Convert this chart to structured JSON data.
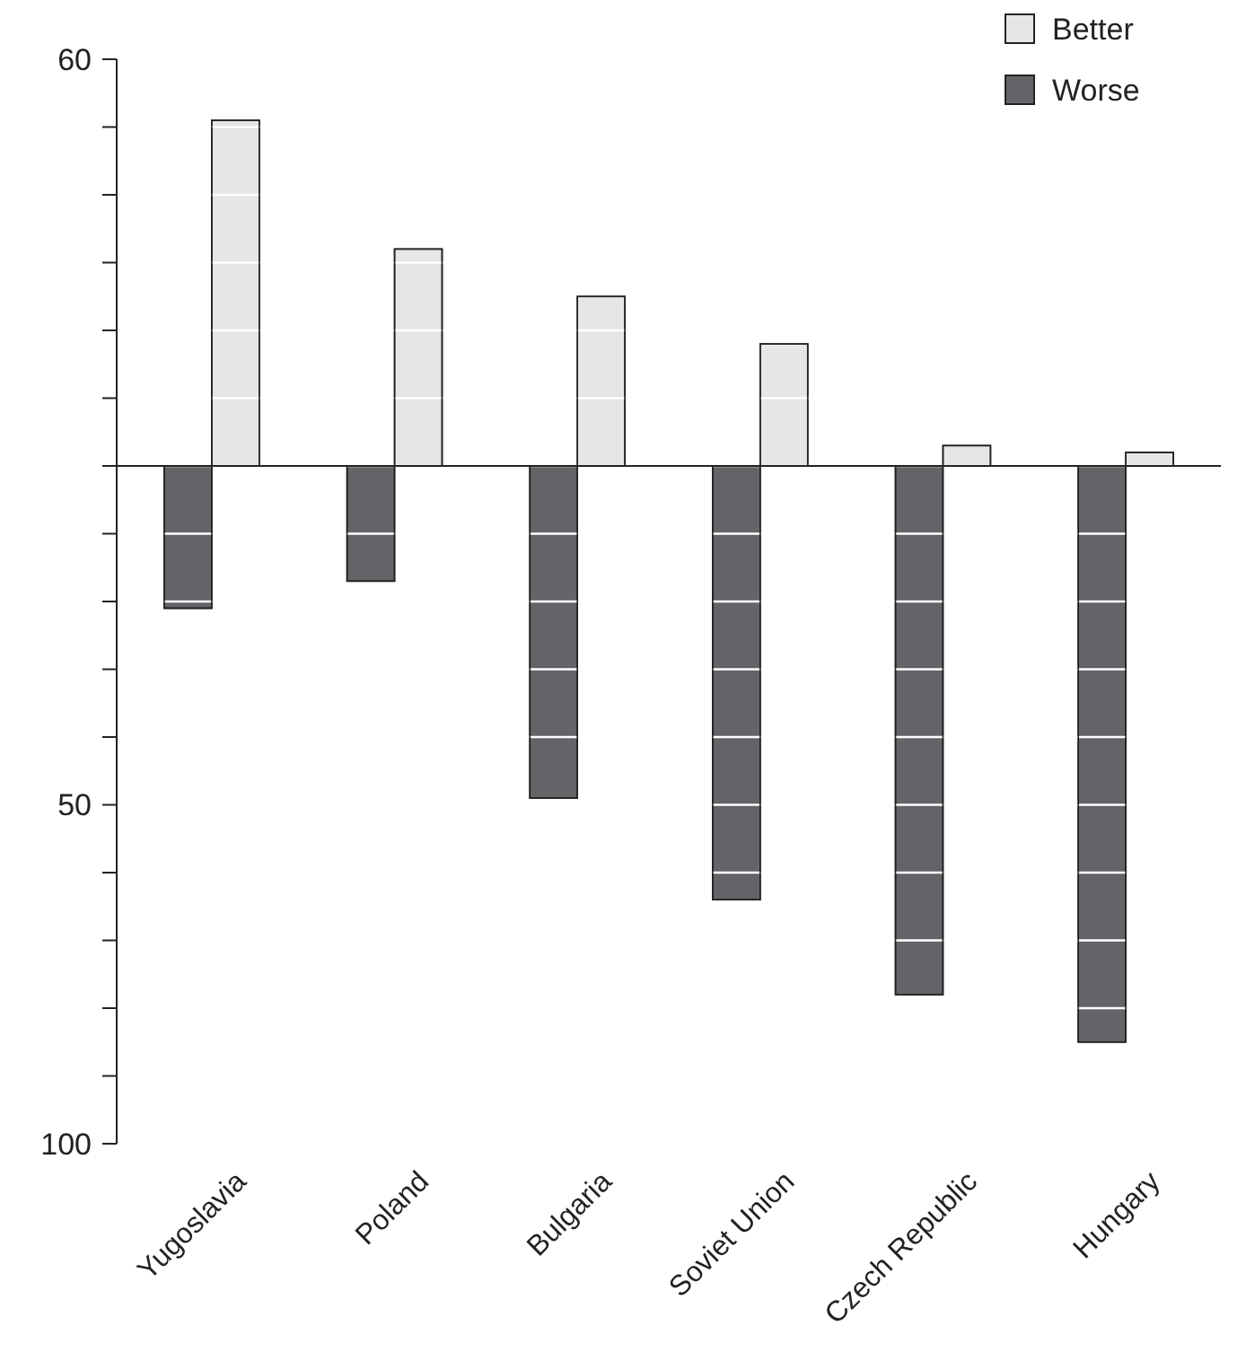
{
  "chart_data": {
    "type": "bar",
    "categories": [
      "Yugoslavia",
      "Poland",
      "Bulgaria",
      "Soviet Union",
      "Czech Republic",
      "Hungary"
    ],
    "series": [
      {
        "name": "Worse",
        "color": "#646468",
        "values": [
          -21,
          -17,
          -49,
          -64,
          -78,
          -85
        ]
      },
      {
        "name": "Better",
        "color": "#e6e6e6",
        "values": [
          51,
          32,
          25,
          18,
          3,
          2
        ]
      }
    ],
    "ylim": [
      -100,
      60
    ],
    "yticks": [
      {
        "value": -100,
        "label": "100"
      },
      {
        "value": -90,
        "label": null
      },
      {
        "value": -80,
        "label": null
      },
      {
        "value": -70,
        "label": null
      },
      {
        "value": -60,
        "label": null
      },
      {
        "value": -50,
        "label": "50"
      },
      {
        "value": -40,
        "label": null
      },
      {
        "value": -30,
        "label": null
      },
      {
        "value": -20,
        "label": null
      },
      {
        "value": -10,
        "label": null
      },
      {
        "value": 0,
        "label": null
      },
      {
        "value": 10,
        "label": null
      },
      {
        "value": 20,
        "label": null
      },
      {
        "value": 30,
        "label": null
      },
      {
        "value": 40,
        "label": null
      },
      {
        "value": 50,
        "label": null
      },
      {
        "value": 60,
        "label": "60"
      }
    ],
    "grid": "y",
    "legend": "top right"
  }
}
